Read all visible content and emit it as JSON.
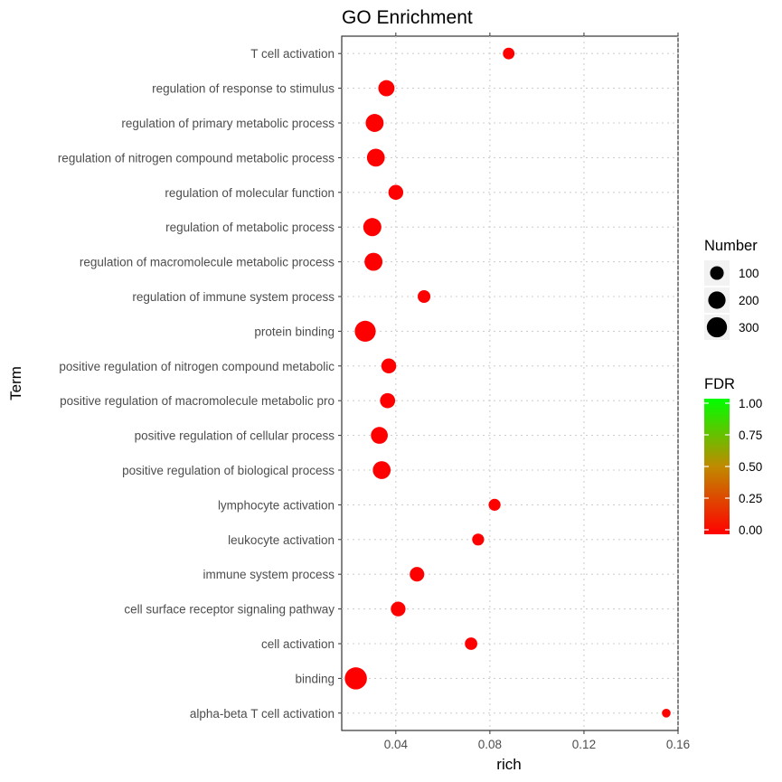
{
  "chart_data": {
    "type": "scatter",
    "title": "GO Enrichment",
    "xlabel": "rich",
    "ylabel": "Term",
    "xlim": [
      0.017,
      0.16
    ],
    "xticks": [
      0.04,
      0.08,
      0.12,
      0.16
    ],
    "xtick_labels": [
      "0.04",
      "0.08",
      "0.12",
      "0.16"
    ],
    "grid": true,
    "categories": [
      "T cell activation",
      "regulation of response to stimulus",
      "regulation of primary metabolic process",
      "regulation of nitrogen compound metabolic process",
      "regulation of molecular function",
      "regulation of metabolic process",
      "regulation of macromolecule metabolic process",
      "regulation of immune system process",
      "protein binding",
      "positive regulation of nitrogen compound metabolic",
      "positive regulation of macromolecule metabolic pro",
      "positive regulation of cellular process",
      "positive regulation of biological process",
      "lymphocyte activation",
      "leukocyte activation",
      "immune system process",
      "cell surface receptor signaling pathway",
      "cell activation",
      "binding",
      "alpha-beta T cell activation"
    ],
    "rich": [
      0.088,
      0.036,
      0.031,
      0.0315,
      0.04,
      0.03,
      0.0305,
      0.052,
      0.027,
      0.037,
      0.0365,
      0.033,
      0.034,
      0.082,
      0.075,
      0.049,
      0.041,
      0.072,
      0.023,
      0.155
    ],
    "number": [
      60,
      165,
      220,
      215,
      130,
      225,
      220,
      80,
      330,
      130,
      135,
      185,
      215,
      65,
      65,
      120,
      125,
      75,
      380,
      20
    ],
    "fdr": [
      0,
      0,
      0,
      0,
      0,
      0,
      0,
      0,
      0,
      0,
      0,
      0,
      0,
      0,
      0,
      0,
      0,
      0,
      0,
      0
    ],
    "legend": {
      "size": {
        "title": "Number",
        "values": [
          100,
          200,
          300
        ],
        "labels": [
          "100",
          "200",
          "300"
        ]
      },
      "color": {
        "title": "FDR",
        "ticks": [
          0,
          0.25,
          0.5,
          0.75,
          1
        ],
        "labels": [
          "0.00",
          "0.25",
          "0.50",
          "0.75",
          "1.00"
        ],
        "low_color": "#ff0000",
        "high_color": "#00ff00"
      },
      "placement": "right"
    }
  }
}
